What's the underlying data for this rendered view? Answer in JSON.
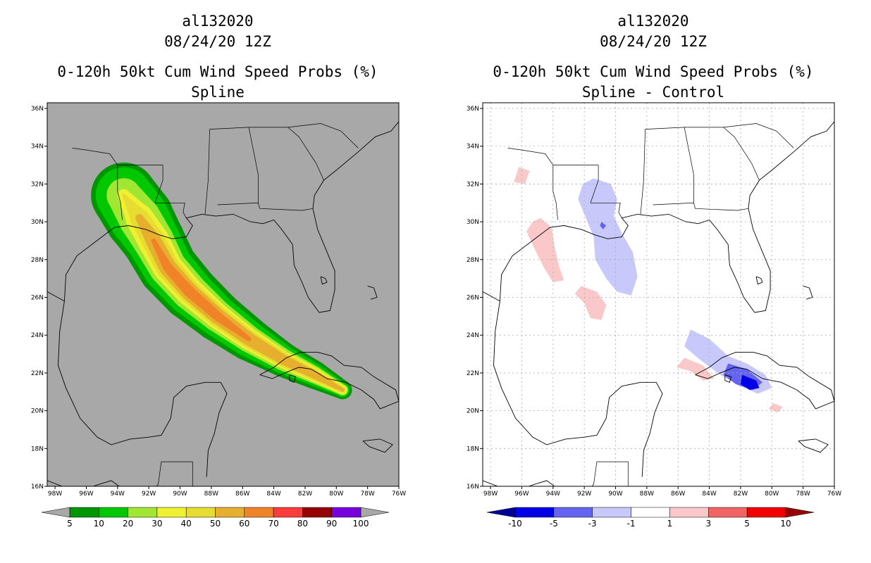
{
  "chart_data": [
    {
      "type": "heatmap",
      "panel": "left",
      "title_lines": [
        "al132020",
        "08/24/20 12Z",
        "0-120h 50kt Cum Wind Speed Probs (%)",
        "Spline"
      ],
      "x_ticks": [
        "98W",
        "96W",
        "94W",
        "92W",
        "90W",
        "88W",
        "86W",
        "84W",
        "82W",
        "80W",
        "78W",
        "76W"
      ],
      "y_ticks": [
        "36N",
        "34N",
        "32N",
        "30N",
        "28N",
        "26N",
        "24N",
        "22N",
        "20N",
        "18N",
        "16N"
      ],
      "lon_range": [
        -98.5,
        -76
      ],
      "lat_range": [
        16,
        36.3
      ],
      "grid": false,
      "background_color": "#a8a8a8",
      "colorbar": {
        "labels": [
          "5",
          "10",
          "20",
          "30",
          "40",
          "50",
          "60",
          "70",
          "80",
          "90",
          "100"
        ],
        "colors": [
          "#009600",
          "#00c800",
          "#a0e632",
          "#f0f032",
          "#e6dc32",
          "#e6af2d",
          "#f08228",
          "#fa3c3c",
          "#960000",
          "#7800dc"
        ],
        "extend_colors": [
          "#a8a8a8",
          "#a8a8a8"
        ]
      },
      "probability_swath": {
        "track_lonlat": [
          [
            -93.6,
            31.4
          ],
          [
            -92.6,
            30.2
          ],
          [
            -91.7,
            29.0
          ],
          [
            -90.8,
            27.6
          ],
          [
            -89.4,
            26.3
          ],
          [
            -87.6,
            25.0
          ],
          [
            -85.6,
            23.8
          ],
          [
            -83.4,
            22.7
          ],
          [
            -81.4,
            21.9
          ],
          [
            -79.6,
            21.1
          ]
        ],
        "bands": [
          {
            "threshold": 5,
            "half_width_deg": [
              2.1,
              2.2,
              2.0,
              1.9,
              1.8,
              1.6,
              1.4,
              1.1,
              0.9,
              0.6
            ]
          },
          {
            "threshold": 10,
            "half_width_deg": [
              1.8,
              1.9,
              1.7,
              1.6,
              1.5,
              1.3,
              1.15,
              0.9,
              0.7,
              0.45
            ]
          },
          {
            "threshold": 20,
            "half_width_deg": [
              1.1,
              1.35,
              1.3,
              1.2,
              1.15,
              1.0,
              0.85,
              0.7,
              0.55,
              0.35
            ]
          },
          {
            "threshold": 30,
            "half_width_deg": [
              0.4,
              0.9,
              1.0,
              0.95,
              0.9,
              0.8,
              0.7,
              0.55,
              0.45,
              0.28
            ]
          },
          {
            "threshold": 40,
            "half_width_deg": [
              0.1,
              0.6,
              0.75,
              0.75,
              0.7,
              0.65,
              0.55,
              0.45,
              0.35,
              0.2
            ]
          },
          {
            "threshold": 50,
            "half_width_deg": [
              0.0,
              0.25,
              0.5,
              0.55,
              0.55,
              0.5,
              0.42,
              0.32,
              0.25,
              0.12
            ]
          },
          {
            "threshold": 60,
            "half_width_deg": [
              0.0,
              0.0,
              0.15,
              0.3,
              0.35,
              0.3,
              0.15,
              0.0,
              0.0,
              0.0
            ]
          }
        ]
      }
    },
    {
      "type": "heatmap",
      "panel": "right",
      "title_lines": [
        "al132020",
        "08/24/20 12Z",
        "0-120h 50kt Cum Wind Speed Probs (%)",
        "Spline - Control"
      ],
      "x_ticks": [
        "98W",
        "96W",
        "94W",
        "92W",
        "90W",
        "88W",
        "86W",
        "84W",
        "82W",
        "80W",
        "78W",
        "76W"
      ],
      "y_ticks": [
        "36N",
        "34N",
        "32N",
        "30N",
        "28N",
        "26N",
        "24N",
        "22N",
        "20N",
        "18N",
        "16N"
      ],
      "lon_range": [
        -98.5,
        -76
      ],
      "lat_range": [
        16,
        36.3
      ],
      "grid": true,
      "background_color": "#ffffff",
      "colorbar": {
        "labels": [
          "-10",
          "-5",
          "-3",
          "-1",
          "1",
          "3",
          "5",
          "10"
        ],
        "colors": [
          "#0000e6",
          "#6464f0",
          "#c8c8fa",
          "#ffffff",
          "#fac8c8",
          "#f06464",
          "#f00000"
        ],
        "extend_colors": [
          "#000096",
          "#960000"
        ]
      },
      "difference_areas": [
        {
          "sign": "negative",
          "magnitude": "-3 to -1",
          "lonlat": [
            [
              -91.4,
              32.3
            ],
            [
              -90.3,
              32.0
            ],
            [
              -89.9,
              31.2
            ],
            [
              -90.1,
              30.3
            ],
            [
              -89.6,
              29.4
            ],
            [
              -88.9,
              28.4
            ],
            [
              -88.6,
              27.1
            ],
            [
              -89.0,
              26.1
            ],
            [
              -89.9,
              26.3
            ],
            [
              -90.6,
              27.0
            ],
            [
              -91.3,
              28.0
            ],
            [
              -91.4,
              29.2
            ],
            [
              -91.9,
              30.2
            ],
            [
              -92.4,
              31.2
            ],
            [
              -92.1,
              32.0
            ]
          ]
        },
        {
          "sign": "negative",
          "magnitude": "-3 to -1",
          "lonlat": [
            [
              -85.2,
              24.3
            ],
            [
              -84.0,
              23.8
            ],
            [
              -82.8,
              22.9
            ],
            [
              -81.6,
              22.5
            ],
            [
              -80.4,
              21.9
            ],
            [
              -80.0,
              21.2
            ],
            [
              -80.9,
              20.9
            ],
            [
              -82.0,
              21.3
            ],
            [
              -83.3,
              21.9
            ],
            [
              -84.6,
              22.7
            ],
            [
              -85.6,
              23.4
            ]
          ]
        },
        {
          "sign": "negative",
          "magnitude": "-5 to -3",
          "lonlat": [
            [
              -82.8,
              22.5
            ],
            [
              -81.6,
              22.2
            ],
            [
              -80.6,
              21.5
            ],
            [
              -81.2,
              21.1
            ],
            [
              -82.3,
              21.4
            ],
            [
              -83.1,
              21.9
            ]
          ]
        },
        {
          "sign": "negative",
          "magnitude": "-10 to -5",
          "lonlat": [
            [
              -81.9,
              21.9
            ],
            [
              -81.0,
              21.6
            ],
            [
              -80.8,
              21.2
            ],
            [
              -81.4,
              21.1
            ],
            [
              -82.0,
              21.4
            ]
          ]
        },
        {
          "sign": "negative",
          "magnitude": "-5 to -3",
          "lonlat": [
            [
              -90.9,
              30.0
            ],
            [
              -90.6,
              29.8
            ],
            [
              -90.8,
              29.6
            ],
            [
              -91.0,
              29.8
            ]
          ]
        },
        {
          "sign": "positive",
          "magnitude": "1 to 3",
          "lonlat": [
            [
              -96.2,
              32.9
            ],
            [
              -95.5,
              32.7
            ],
            [
              -95.8,
              32.0
            ],
            [
              -96.5,
              32.1
            ]
          ]
        },
        {
          "sign": "positive",
          "magnitude": "1 to 3",
          "lonlat": [
            [
              -94.8,
              30.2
            ],
            [
              -94.1,
              29.7
            ],
            [
              -93.9,
              28.7
            ],
            [
              -93.6,
              27.6
            ],
            [
              -93.3,
              26.9
            ],
            [
              -94.0,
              26.8
            ],
            [
              -94.6,
              27.6
            ],
            [
              -95.2,
              28.6
            ],
            [
              -95.7,
              29.5
            ],
            [
              -95.3,
              30.0
            ]
          ]
        },
        {
          "sign": "positive",
          "magnitude": "1 to 3",
          "lonlat": [
            [
              -92.2,
              26.6
            ],
            [
              -91.2,
              26.3
            ],
            [
              -90.6,
              25.6
            ],
            [
              -90.9,
              24.8
            ],
            [
              -91.6,
              24.9
            ],
            [
              -92.0,
              25.7
            ],
            [
              -92.6,
              26.2
            ]
          ]
        },
        {
          "sign": "positive",
          "magnitude": "1 to 3",
          "lonlat": [
            [
              -85.6,
              22.8
            ],
            [
              -84.4,
              22.4
            ],
            [
              -83.7,
              21.7
            ],
            [
              -84.4,
              21.6
            ],
            [
              -85.2,
              22.1
            ],
            [
              -86.1,
              22.3
            ]
          ]
        },
        {
          "sign": "positive",
          "magnitude": "1 to 3",
          "lonlat": [
            [
              -79.9,
              20.4
            ],
            [
              -79.3,
              20.2
            ],
            [
              -79.6,
              19.9
            ],
            [
              -80.2,
              20.1
            ]
          ]
        }
      ]
    }
  ]
}
